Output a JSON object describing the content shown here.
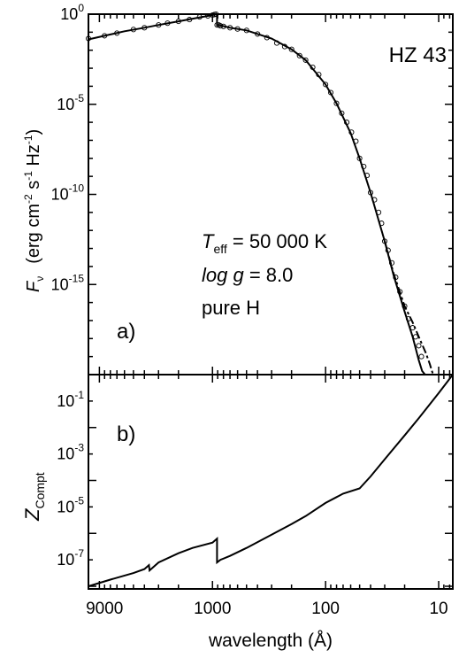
{
  "chart_data": [
    {
      "panel_label": "a)",
      "type": "line",
      "title": "HZ 43",
      "ylabel": {
        "symbol": "F",
        "symbol_sub": "ν",
        "units_open": "(erg cm",
        "units_exp1": "-2",
        "units_mid1": " s",
        "units_exp2": "-1",
        "units_mid2": " Hz",
        "units_exp3": "-1",
        "units_close": ")"
      },
      "xscale": "log",
      "yscale": "log",
      "xaxis_reversed": true,
      "xlim": [
        12500,
        7.5
      ],
      "ylim_exponent": [
        -20,
        0
      ],
      "ytick_labels": [
        {
          "value": 0,
          "base": "10",
          "exp": "0"
        },
        {
          "value": -5,
          "base": "10",
          "exp": "-5"
        },
        {
          "value": -10,
          "base": "10",
          "exp": "-10"
        },
        {
          "value": -15,
          "base": "10",
          "exp": "-15"
        }
      ],
      "annotations": {
        "teff_symbol": "T",
        "teff_sub": "eff",
        "teff_value": " = 50 000 K",
        "logg_symbol": "log g",
        "logg_value": " = 8.0",
        "composition": "pure H"
      },
      "series": [
        {
          "style": "solid",
          "x": [
            12500,
            9000,
            6000,
            4000,
            3000,
            2000,
            1500,
            1000,
            925,
            912,
            911,
            880,
            700,
            500,
            300,
            200,
            150,
            100,
            80,
            60,
            50,
            40,
            30,
            25,
            20,
            17,
            15,
            14,
            13.2
          ],
          "log_y": [
            -1.4,
            -1.2,
            -0.95,
            -0.75,
            -0.6,
            -0.4,
            -0.25,
            -0.05,
            0.0,
            0.0,
            -0.6,
            -0.6,
            -0.75,
            -0.9,
            -1.35,
            -1.95,
            -2.55,
            -3.9,
            -4.95,
            -6.6,
            -8.0,
            -9.9,
            -12.6,
            -14.5,
            -16.5,
            -17.9,
            -19.2,
            -19.8,
            -20.0
          ]
        },
        {
          "style": "dashed",
          "x": [
            30,
            25,
            20,
            17,
            15,
            13,
            12,
            11.2
          ],
          "log_y": [
            -12.6,
            -14.4,
            -16.2,
            -17.1,
            -17.9,
            -18.8,
            -19.4,
            -20.0
          ]
        },
        {
          "style": "open-circles",
          "x": [
            12500,
            9000,
            7000,
            5000,
            4000,
            3000,
            2500,
            2000,
            1600,
            1300,
            1100,
            1000,
            960,
            930,
            910,
            880,
            850,
            800,
            700,
            600,
            500,
            400,
            330,
            270,
            230,
            200,
            170,
            150,
            130,
            115,
            100,
            90,
            80,
            72,
            65,
            59,
            54,
            50,
            46,
            43,
            40,
            37,
            34,
            32,
            30,
            28,
            26,
            24,
            22,
            20,
            18.5,
            17,
            16,
            15,
            14.2
          ],
          "log_y": [
            -1.35,
            -1.2,
            -1.05,
            -0.85,
            -0.75,
            -0.6,
            -0.5,
            -0.4,
            -0.3,
            -0.15,
            -0.1,
            -0.05,
            -0.02,
            0.0,
            -0.6,
            -0.6,
            -0.65,
            -0.68,
            -0.75,
            -0.82,
            -0.9,
            -1.1,
            -1.3,
            -1.6,
            -1.8,
            -1.95,
            -2.3,
            -2.55,
            -2.95,
            -3.35,
            -3.9,
            -4.35,
            -4.95,
            -5.5,
            -6.0,
            -6.55,
            -7.05,
            -8.0,
            -8.45,
            -8.95,
            -9.9,
            -10.3,
            -11.0,
            -11.6,
            -12.6,
            -13.1,
            -13.8,
            -14.6,
            -15.4,
            -16.2,
            -16.9,
            -17.4,
            -17.9,
            -18.4,
            -19.0
          ]
        }
      ]
    },
    {
      "panel_label": "b)",
      "type": "line",
      "ylabel": {
        "symbol": "Z",
        "symbol_sub": "Compt"
      },
      "xlabel": "wavelength  (Å)",
      "xscale": "log",
      "yscale": "log",
      "xaxis_reversed": true,
      "xlim": [
        12500,
        7.5
      ],
      "xtick_labels": [
        {
          "value": 9000,
          "label": "9000"
        },
        {
          "value": 1000,
          "label": "1000"
        },
        {
          "value": 100,
          "label": "100"
        },
        {
          "value": 10,
          "label": "10"
        }
      ],
      "ylim_exponent": [
        -8.1,
        0.0
      ],
      "ytick_labels": [
        {
          "value": -1,
          "base": "10",
          "exp": "-1"
        },
        {
          "value": -3,
          "base": "10",
          "exp": "-3"
        },
        {
          "value": -5,
          "base": "10",
          "exp": "-5"
        },
        {
          "value": -7,
          "base": "10",
          "exp": "-7"
        }
      ],
      "series": [
        {
          "style": "solid",
          "x": [
            12500,
            8000,
            5000,
            4000,
            3650,
            3600,
            3000,
            2000,
            1500,
            1000,
            912,
            911,
            850,
            700,
            500,
            300,
            200,
            150,
            100,
            70,
            50,
            40,
            30,
            20,
            15,
            10,
            7.5
          ],
          "log_y": [
            -8.0,
            -7.75,
            -7.5,
            -7.35,
            -7.2,
            -7.4,
            -7.1,
            -6.75,
            -6.55,
            -6.35,
            -6.2,
            -7.1,
            -7.0,
            -6.85,
            -6.55,
            -6.05,
            -5.65,
            -5.35,
            -4.85,
            -4.5,
            -4.3,
            -3.85,
            -3.2,
            -2.3,
            -1.65,
            -0.7,
            0.0
          ]
        }
      ]
    }
  ]
}
